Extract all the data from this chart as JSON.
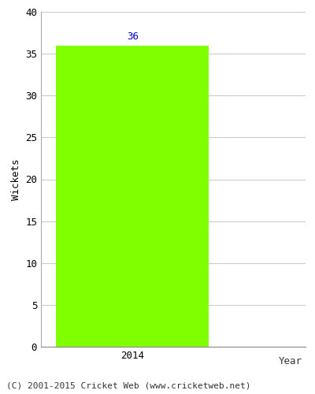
{
  "years": [
    "2014"
  ],
  "values": [
    36
  ],
  "bar_color": "#80ff00",
  "bar_edge_color": "#80ff00",
  "ylabel": "Wickets",
  "xlabel": "Year",
  "ylim": [
    0,
    40
  ],
  "yticks": [
    0,
    5,
    10,
    15,
    20,
    25,
    30,
    35,
    40
  ],
  "annotation_color": "#0000cc",
  "annotation_fontsize": 9,
  "axis_label_fontsize": 9,
  "tick_fontsize": 9,
  "footer_text": "(C) 2001-2015 Cricket Web (www.cricketweb.net)",
  "footer_fontsize": 8,
  "background_color": "#ffffff",
  "grid_color": "#cccccc"
}
